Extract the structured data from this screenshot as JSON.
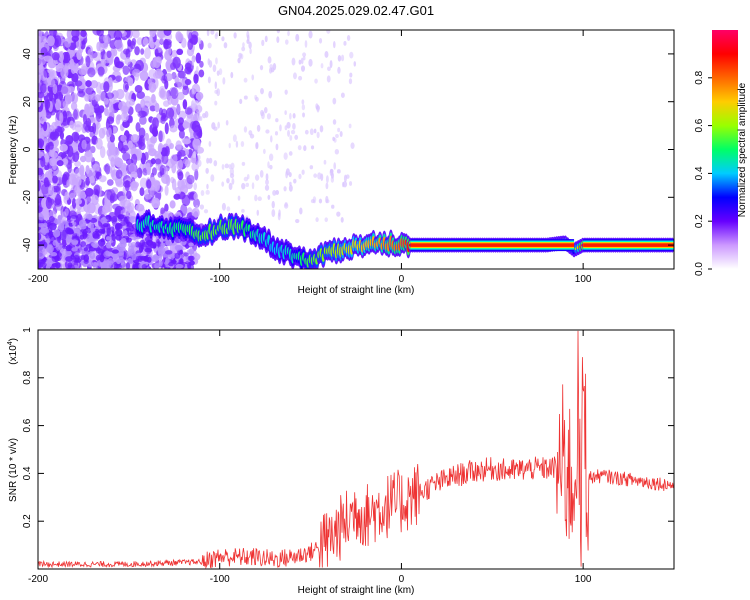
{
  "title": "GN04.2025.029.02.47.G01",
  "chart_data": [
    {
      "type": "heatmap",
      "xlabel": "Height of straight line (km)",
      "ylabel": "Frequency (Hz)",
      "xlim": [
        -200,
        150
      ],
      "ylim": [
        -50,
        50
      ],
      "x_ticks": [
        -200,
        -100,
        0,
        100
      ],
      "y_ticks": [
        -40,
        -20,
        0,
        20,
        40
      ],
      "colorbar": {
        "label": "Normalized spectral amplitude",
        "range": [
          0,
          1
        ],
        "ticks": [
          0.0,
          0.2,
          0.4,
          0.6,
          0.8
        ],
        "tick_labels": [
          "0.0",
          "0.2",
          "0.4",
          "0.6",
          "0.8"
        ],
        "colors": [
          "#ffffff",
          "#cc99ff",
          "#6600ff",
          "#0000ff",
          "#00ccff",
          "#00ff66",
          "#99ff00",
          "#ffcc00",
          "#ff6600",
          "#ff0000",
          "#ff0066"
        ]
      },
      "ridge": {
        "x": [
          -140,
          -120,
          -110,
          -100,
          -90,
          -80,
          -70,
          -60,
          -50,
          -40,
          -30,
          -20,
          -10,
          0,
          5,
          40,
          60,
          80,
          90,
          95,
          100,
          150
        ],
        "y": [
          -31,
          -34,
          -36,
          -33,
          -32,
          -35,
          -41,
          -44,
          -47,
          -43,
          -41,
          -40,
          -39,
          -40,
          -40,
          -40,
          -40,
          -40,
          -39,
          -42,
          -40,
          -40
        ],
        "amplitude": [
          0.45,
          0.5,
          0.55,
          0.55,
          0.55,
          0.45,
          0.4,
          0.45,
          0.55,
          0.6,
          0.65,
          0.7,
          0.75,
          0.8,
          0.9,
          0.95,
          0.95,
          0.9,
          0.7,
          0.5,
          0.95,
          0.95
        ]
      },
      "grid": false
    },
    {
      "type": "line",
      "xlabel": "Height of straight line (km)",
      "ylabel": "SNR (10 * v/v)",
      "y_multiplier": "(x10",
      "y_multiplier_exp": "4",
      "y_multiplier_close": ")",
      "xlim": [
        -200,
        150
      ],
      "ylim": [
        0,
        1.0
      ],
      "x_ticks": [
        -200,
        -100,
        0,
        100
      ],
      "y_ticks": [
        0.2,
        0.4,
        0.6,
        0.8,
        1.0
      ],
      "series": [
        {
          "color": "#ee3333",
          "x": [
            -200,
            -150,
            -110,
            -100,
            -90,
            -80,
            -70,
            -60,
            -50,
            -40,
            -30,
            -25,
            -20,
            -10,
            0,
            10,
            20,
            30,
            40,
            50,
            60,
            70,
            80,
            90,
            95,
            97,
            99,
            100,
            102,
            110,
            120,
            130,
            140,
            150
          ],
          "y": [
            0.02,
            0.02,
            0.03,
            0.05,
            0.05,
            0.05,
            0.04,
            0.05,
            0.07,
            0.12,
            0.2,
            0.25,
            0.22,
            0.26,
            0.28,
            0.32,
            0.36,
            0.39,
            0.41,
            0.42,
            0.41,
            0.42,
            0.42,
            0.43,
            0.35,
            0.7,
            0.1,
            0.9,
            0.38,
            0.39,
            0.38,
            0.37,
            0.36,
            0.35
          ]
        }
      ],
      "grid": false
    }
  ]
}
